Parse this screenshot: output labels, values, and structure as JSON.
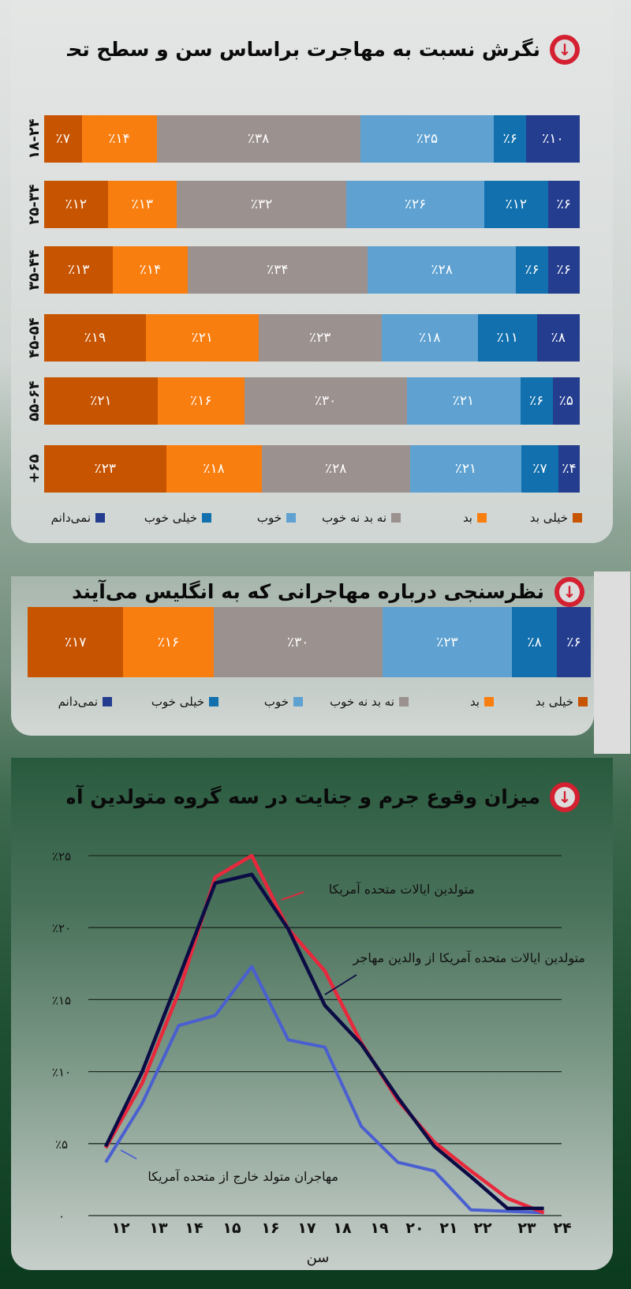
{
  "colors": {
    "very_bad": "#c75400",
    "bad": "#f97e10",
    "neutral": "#9b918f",
    "good": "#5fa2d2",
    "very_good": "#1170ad",
    "dont_know": "#253d8f"
  },
  "legend": [
    "خیلی بد",
    "بد",
    "نه بد نه خوب",
    "خوب",
    "خیلی خوب",
    "نمی‌دانم"
  ],
  "section1": {
    "title": "نگرش نسبت به مهاجرت براساس سن و سطح تحصیلات",
    "icon": "arrow-down-circle-icon",
    "rows": [
      {
        "label": "۱۸-۲۴",
        "values": [
          7,
          14,
          38,
          25,
          6,
          10
        ],
        "texts": [
          "٪۷",
          "٪۱۴",
          "٪۳۸",
          "٪۲۵",
          "٪۶",
          "٪۱۰"
        ]
      },
      {
        "label": "۲۵-۳۴",
        "values": [
          12,
          13,
          32,
          26,
          12,
          6
        ],
        "texts": [
          "٪۱۲",
          "٪۱۳",
          "٪۳۲",
          "٪۲۶",
          "٪۱۲",
          "٪۶"
        ]
      },
      {
        "label": "۳۵-۴۴",
        "values": [
          13,
          14,
          34,
          28,
          6,
          6
        ],
        "texts": [
          "٪۱۳",
          "٪۱۴",
          "٪۳۴",
          "٪۲۸",
          "٪۶",
          "٪۶"
        ]
      },
      {
        "label": "۴۵-۵۴",
        "values": [
          19,
          21,
          23,
          18,
          11,
          8
        ],
        "texts": [
          "٪۱۹",
          "٪۲۱",
          "٪۲۳",
          "٪۱۸",
          "٪۱۱",
          "٪۸"
        ]
      },
      {
        "label": "۵۵-۶۴",
        "values": [
          21,
          16,
          30,
          21,
          6,
          5
        ],
        "texts": [
          "٪۲۱",
          "٪۱۶",
          "٪۳۰",
          "٪۲۱",
          "٪۶",
          "٪۵"
        ]
      },
      {
        "label": "+۶۵",
        "values": [
          23,
          18,
          28,
          21,
          7,
          4
        ],
        "texts": [
          "٪۲۳",
          "٪۱۸",
          "٪۲۸",
          "٪۲۱",
          "٪۷",
          "٪۴"
        ]
      }
    ]
  },
  "section2": {
    "title": "نظرسنجی درباره مهاجرانی که به انگلیس می‌آیند",
    "icon": "arrow-down-circle-icon",
    "values": [
      17,
      16,
      30,
      23,
      8,
      6
    ],
    "texts": [
      "٪۱۷",
      "٪۱۶",
      "٪۳۰",
      "٪۲۳",
      "٪۸",
      "٪۶"
    ]
  },
  "section3": {
    "title": "میزان وقوع جرم و جنایت در سه گروه متولدین آمریکا",
    "icon": "arrow-down-circle-icon"
  },
  "chart_data": [
    {
      "type": "bar",
      "stacked": true,
      "orientation": "horizontal",
      "categories": [
        "۱۸-۲۴",
        "۲۵-۳۴",
        "۳۵-۴۴",
        "۴۵-۵۴",
        "۵۵-۶۴",
        "+۶۵"
      ],
      "series": [
        {
          "name": "خیلی بد",
          "values": [
            7,
            12,
            13,
            19,
            21,
            23
          ]
        },
        {
          "name": "بد",
          "values": [
            14,
            13,
            14,
            21,
            16,
            18
          ]
        },
        {
          "name": "نه بد نه خوب",
          "values": [
            38,
            32,
            34,
            23,
            30,
            28
          ]
        },
        {
          "name": "خوب",
          "values": [
            25,
            26,
            28,
            18,
            21,
            21
          ]
        },
        {
          "name": "خیلی خوب",
          "values": [
            6,
            12,
            6,
            11,
            6,
            7
          ]
        },
        {
          "name": "نمی‌دانم",
          "values": [
            10,
            6,
            6,
            8,
            5,
            4
          ]
        }
      ],
      "legend": "bottom"
    },
    {
      "type": "bar",
      "stacked": true,
      "orientation": "horizontal",
      "series": [
        {
          "name": "خیلی بد",
          "values": [
            17
          ]
        },
        {
          "name": "بد",
          "values": [
            16
          ]
        },
        {
          "name": "نه بد نه خوب",
          "values": [
            30
          ]
        },
        {
          "name": "خوب",
          "values": [
            23
          ]
        },
        {
          "name": "خیلی خوب",
          "values": [
            8
          ]
        },
        {
          "name": "نمی‌دانم",
          "values": [
            6
          ]
        }
      ],
      "legend": "bottom"
    },
    {
      "type": "line",
      "x": [
        12,
        13,
        14,
        15,
        16,
        17,
        18,
        19,
        20,
        21,
        22,
        23,
        24
      ],
      "x_tick_labels": [
        "۱۲",
        "۱۳",
        "۱۴",
        "۱۵",
        "۱۶",
        "۱۷",
        "۱۸",
        "۱۹",
        "۲۰",
        "۲۱",
        "۲۲",
        "۲۳",
        "۲۴"
      ],
      "y_ticks": [
        0,
        5,
        10,
        15,
        20,
        25
      ],
      "y_tick_labels": [
        "۰",
        "٪۵",
        "٪۱۰",
        "٪۱۵",
        "٪۲۰",
        "٪۲۵"
      ],
      "ylim": [
        0,
        25
      ],
      "xlabel": "سن",
      "ylabel": "",
      "grid": "horizontal",
      "series": [
        {
          "name": "متولدین ایالات متحده آمریکا",
          "color": "#e8283c",
          "values": [
            4.7,
            9.2,
            15.5,
            23.5,
            25,
            19.9,
            17,
            12,
            8,
            5.1,
            3.1,
            1.2,
            0.2
          ]
        },
        {
          "name": "متولدین ایالات متحده آمریکا از والدین مهاجر",
          "color": "#0c0c45",
          "values": [
            4.8,
            10,
            16.5,
            23.1,
            23.7,
            19.9,
            14.6,
            11.9,
            8.2,
            4.8,
            2.7,
            0.5,
            0.5
          ]
        },
        {
          "name": "مهاجران متولد خارج از متحده آمریکا",
          "color": "#4a5fd0",
          "values": [
            3.7,
            7.8,
            13.2,
            13.9,
            17.3,
            12.2,
            11.7,
            6.2,
            3.7,
            3.1,
            0.4,
            0.3,
            0.2
          ]
        }
      ]
    }
  ]
}
